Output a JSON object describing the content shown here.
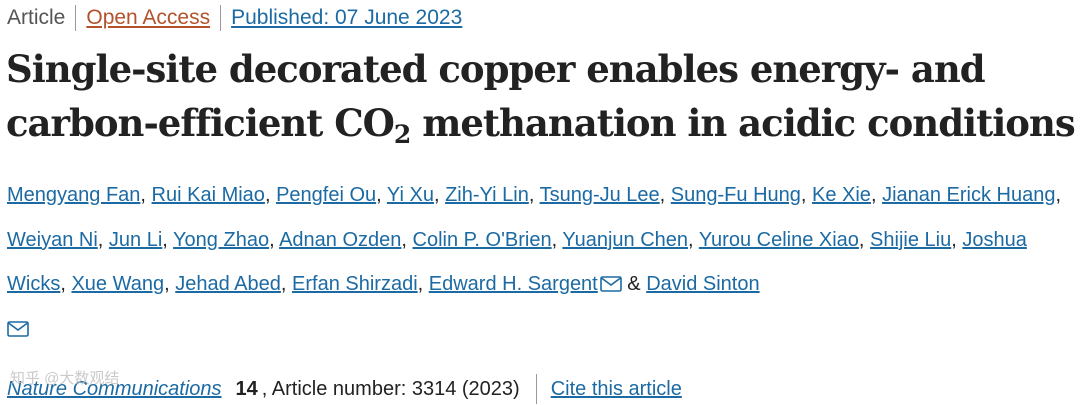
{
  "meta": {
    "type": "Article",
    "open_access": "Open Access",
    "published": "Published: 07 June 2023"
  },
  "title": {
    "part1": "Single-site decorated copper enables energy- and carbon-efficient CO",
    "subscript": "2",
    "part2": " methanation in acidic conditions"
  },
  "authors": [
    "Mengyang Fan",
    "Rui Kai Miao",
    "Pengfei Ou",
    "Yi Xu",
    "Zih-Yi Lin",
    "Tsung-Ju Lee",
    "Sung-Fu Hung",
    "Ke Xie",
    "Jianan Erick Huang",
    "Weiyan Ni",
    "Jun Li",
    "Yong Zhao",
    "Adnan Ozden",
    "Colin P. O'Brien",
    "Yuanjun Chen",
    "Yurou Celine Xiao",
    "Shijie Liu",
    "Joshua Wicks",
    "Xue Wang",
    "Jehad Abed",
    "Erfan Shirzadi",
    "Edward H. Sargent",
    "David Sinton"
  ],
  "author_separator": ",",
  "author_conjunction": "&",
  "corresponding_icon": "mail-icon",
  "citation": {
    "journal": "Nature Communications",
    "volume": "14",
    "article_info": ", Article number: 3314 (2023)",
    "cite_label": "Cite this article"
  },
  "watermark": "知乎 @大数观结",
  "colors": {
    "link": "#1c6aa3",
    "open_access": "#b3522b",
    "text": "#222222"
  }
}
